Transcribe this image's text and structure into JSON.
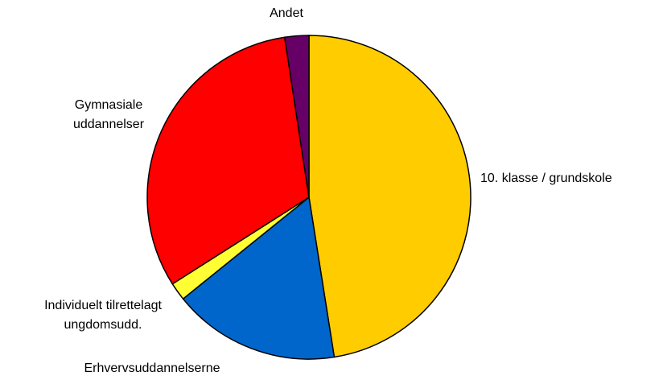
{
  "chart_data": {
    "type": "pie",
    "categories": [
      "10. klasse / grundskole",
      "Erhvervsuddannelserne",
      "Individuelt tilrettelagt\nungdomsudd.",
      "Gymnasiale\nuddannelser",
      "Andet"
    ],
    "values": [
      47.5,
      16.7,
      1.8,
      31.6,
      2.4
    ],
    "colors": [
      "#ffcc00",
      "#0066cc",
      "#ffff33",
      "#ff0000",
      "#660066"
    ]
  }
}
